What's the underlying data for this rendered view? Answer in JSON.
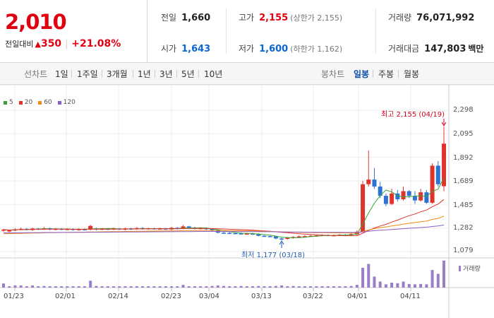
{
  "quote": {
    "price": "2,010",
    "change_label": "전일대비",
    "change_arrow": "▲",
    "change_value": "350",
    "change_pct": "+21.08%"
  },
  "stats": {
    "prev_label": "전일",
    "prev": "1,660",
    "open_label": "시가",
    "open": "1,643",
    "high_label": "고가",
    "high": "2,155",
    "upper_limit": "(상한가 2,155)",
    "low_label": "저가",
    "low": "1,600",
    "lower_limit": "(하한가 1,162)",
    "volume_label": "거래량",
    "volume": "76,071,992",
    "amount_label": "거래대금",
    "amount": "147,803",
    "amount_unit": "백만"
  },
  "line_tabs": {
    "title": "선차트",
    "items": [
      "1일",
      "1주일",
      "3개월",
      "1년",
      "3년",
      "5년",
      "10년"
    ]
  },
  "candle_tabs": {
    "title": "봉차트",
    "items": [
      "일봉",
      "주봉",
      "월봉"
    ],
    "active": 0
  },
  "legend": [
    {
      "name": "5",
      "color": "#3aa335"
    },
    {
      "name": "20",
      "color": "#e0332c"
    },
    {
      "name": "60",
      "color": "#ef8a12"
    },
    {
      "name": "120",
      "color": "#8b5ec9"
    }
  ],
  "annotations": {
    "high": "최고 2,155 (04/19)",
    "low": "최저 1,177 (03/18)"
  },
  "volume_label": "거래량",
  "chart_data": {
    "type": "candlestick",
    "y_ticks": [
      "2,298",
      "2,095",
      "1,892",
      "1,689",
      "1,485",
      "1,282",
      "1,079"
    ],
    "ylim": [
      1079,
      2298
    ],
    "x_labels": [
      "01/23",
      "02/01",
      "02/14",
      "02/23",
      "03/04",
      "03/13",
      "03/22",
      "04/01",
      "04/11"
    ],
    "candles": [
      [
        1260,
        1268,
        1250,
        1275
      ],
      [
        1252,
        1262,
        1245,
        1268
      ],
      [
        1262,
        1270,
        1255,
        1280
      ],
      [
        1268,
        1275,
        1262,
        1285
      ],
      [
        1275,
        1270,
        1262,
        1282
      ],
      [
        1265,
        1278,
        1258,
        1285
      ],
      [
        1278,
        1272,
        1265,
        1282
      ],
      [
        1272,
        1280,
        1266,
        1290
      ],
      [
        1280,
        1270,
        1263,
        1285
      ],
      [
        1270,
        1276,
        1262,
        1282
      ],
      [
        1276,
        1270,
        1264,
        1282
      ],
      [
        1270,
        1274,
        1264,
        1280
      ],
      [
        1274,
        1266,
        1260,
        1280
      ],
      [
        1266,
        1272,
        1260,
        1278
      ],
      [
        1272,
        1268,
        1260,
        1280
      ],
      [
        1268,
        1300,
        1262,
        1310
      ],
      [
        1278,
        1270,
        1262,
        1285
      ],
      [
        1270,
        1276,
        1264,
        1282
      ],
      [
        1276,
        1272,
        1265,
        1282
      ],
      [
        1272,
        1278,
        1265,
        1285
      ],
      [
        1278,
        1270,
        1264,
        1282
      ],
      [
        1268,
        1278,
        1262,
        1285
      ],
      [
        1278,
        1272,
        1265,
        1285
      ],
      [
        1272,
        1282,
        1266,
        1290
      ],
      [
        1282,
        1274,
        1268,
        1290
      ],
      [
        1274,
        1280,
        1268,
        1285
      ],
      [
        1280,
        1274,
        1268,
        1285
      ],
      [
        1274,
        1278,
        1268,
        1284
      ],
      [
        1278,
        1272,
        1266,
        1284
      ],
      [
        1270,
        1284,
        1264,
        1292
      ],
      [
        1284,
        1278,
        1270,
        1290
      ],
      [
        1278,
        1296,
        1272,
        1308
      ],
      [
        1296,
        1284,
        1276,
        1300
      ],
      [
        1284,
        1278,
        1270,
        1292
      ],
      [
        1278,
        1282,
        1272,
        1290
      ],
      [
        1282,
        1272,
        1266,
        1288
      ],
      [
        1274,
        1262,
        1255,
        1280
      ],
      [
        1262,
        1242,
        1235,
        1268
      ],
      [
        1242,
        1240,
        1232,
        1250
      ],
      [
        1240,
        1238,
        1230,
        1248
      ],
      [
        1238,
        1236,
        1230,
        1244
      ],
      [
        1236,
        1232,
        1226,
        1244
      ],
      [
        1232,
        1234,
        1225,
        1240
      ],
      [
        1234,
        1232,
        1226,
        1240
      ],
      [
        1232,
        1215,
        1210,
        1236
      ],
      [
        1215,
        1212,
        1205,
        1220
      ],
      [
        1212,
        1210,
        1205,
        1218
      ],
      [
        1210,
        1192,
        1185,
        1214
      ],
      [
        1192,
        1188,
        1177,
        1198
      ],
      [
        1188,
        1198,
        1182,
        1205
      ],
      [
        1198,
        1205,
        1190,
        1212
      ],
      [
        1205,
        1210,
        1198,
        1218
      ],
      [
        1210,
        1212,
        1204,
        1220
      ],
      [
        1212,
        1215,
        1206,
        1222
      ],
      [
        1215,
        1218,
        1208,
        1224
      ],
      [
        1218,
        1222,
        1212,
        1228
      ],
      [
        1222,
        1218,
        1212,
        1226
      ],
      [
        1218,
        1220,
        1212,
        1226
      ],
      [
        1220,
        1224,
        1214,
        1230
      ],
      [
        1224,
        1222,
        1216,
        1230
      ],
      [
        1222,
        1230,
        1216,
        1238
      ],
      [
        1228,
        1250,
        1222,
        1262
      ],
      [
        1250,
        1660,
        1245,
        1690
      ],
      [
        1660,
        1700,
        1640,
        1950
      ],
      [
        1700,
        1640,
        1620,
        1800
      ],
      [
        1640,
        1560,
        1540,
        1680
      ],
      [
        1560,
        1490,
        1470,
        1580
      ],
      [
        1490,
        1580,
        1480,
        1620
      ],
      [
        1580,
        1530,
        1510,
        1610
      ],
      [
        1530,
        1600,
        1520,
        1640
      ],
      [
        1600,
        1560,
        1540,
        1610
      ],
      [
        1560,
        1520,
        1490,
        1600
      ],
      [
        1520,
        1590,
        1510,
        1620
      ],
      [
        1590,
        1500,
        1490,
        1610
      ],
      [
        1500,
        1820,
        1490,
        1840
      ],
      [
        1820,
        1660,
        1640,
        1860
      ],
      [
        1643,
        2010,
        1600,
        2155
      ]
    ],
    "volumes": [
      0.15,
      0.05,
      0.08,
      0.08,
      0.05,
      0.08,
      0.05,
      0.06,
      0.05,
      0.05,
      0.05,
      0.05,
      0.05,
      0.05,
      0.05,
      0.25,
      0.06,
      0.05,
      0.05,
      0.05,
      0.05,
      0.05,
      0.05,
      0.05,
      0.05,
      0.05,
      0.05,
      0.05,
      0.05,
      0.05,
      0.05,
      0.1,
      0.05,
      0.05,
      0.05,
      0.05,
      0.06,
      0.08,
      0.06,
      0.05,
      0.05,
      0.06,
      0.05,
      0.05,
      0.06,
      0.05,
      0.05,
      0.06,
      0.08,
      0.05,
      0.06,
      0.05,
      0.05,
      0.05,
      0.05,
      0.05,
      0.05,
      0.05,
      0.05,
      0.05,
      0.06,
      0.1,
      0.72,
      0.86,
      0.4,
      0.22,
      0.12,
      0.18,
      0.16,
      0.22,
      0.13,
      0.12,
      0.13,
      0.12,
      0.64,
      0.5,
      0.98
    ]
  }
}
